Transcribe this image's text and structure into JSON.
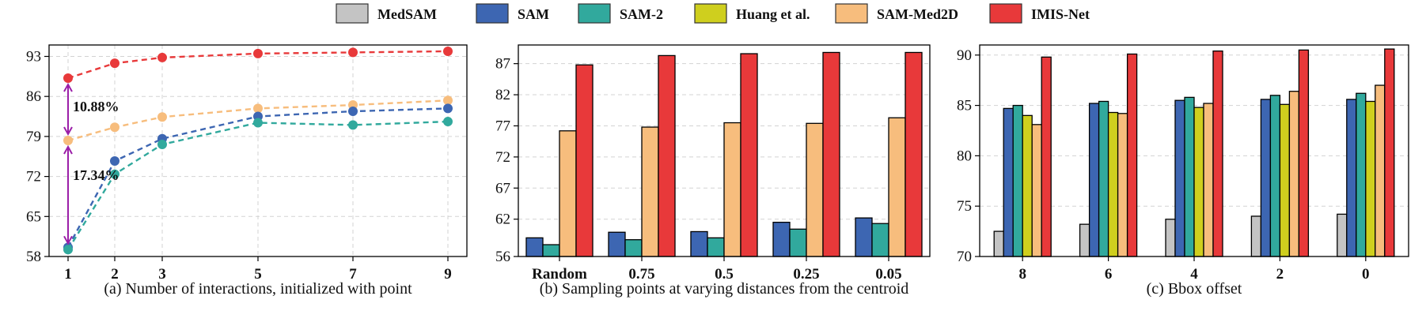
{
  "legend": {
    "items": [
      {
        "name": "MedSAM",
        "color": "#c4c4c4"
      },
      {
        "name": "SAM",
        "color": "#3d66b2"
      },
      {
        "name": "SAM-2",
        "color": "#31a99d"
      },
      {
        "name": "Huang et al.",
        "color": "#cfcf1e"
      },
      {
        "name": "SAM-Med2D",
        "color": "#f7bd7d"
      },
      {
        "name": "IMIS-Net",
        "color": "#e8393a"
      }
    ]
  },
  "chart_data": [
    {
      "type": "line",
      "title": "(a) Number of interactions, initialized with point",
      "x": [
        1,
        2,
        3,
        5,
        7,
        9
      ],
      "ylim": [
        58,
        95
      ],
      "yticks": [
        58,
        65,
        72,
        79,
        86,
        93
      ],
      "grid": true,
      "series": [
        {
          "name": "IMIS-Net",
          "color": "#e8393a",
          "values": [
            89.2,
            91.8,
            92.8,
            93.5,
            93.7,
            93.9
          ]
        },
        {
          "name": "SAM-Med2D",
          "color": "#f7bd7d",
          "values": [
            78.3,
            80.6,
            82.4,
            83.9,
            84.5,
            85.3
          ]
        },
        {
          "name": "SAM",
          "color": "#3d66b2",
          "values": [
            59.6,
            74.7,
            78.6,
            82.5,
            83.4,
            83.9
          ]
        },
        {
          "name": "SAM-2",
          "color": "#31a99d",
          "values": [
            59.2,
            72.4,
            77.6,
            81.4,
            81.0,
            81.6
          ]
        }
      ],
      "annotations": [
        {
          "text": "10.88%",
          "from": 78.3,
          "to": 89.2
        },
        {
          "text": "17.34%",
          "from": 59.2,
          "to": 78.3
        }
      ]
    },
    {
      "type": "bar",
      "title": "(b) Sampling points at varying distances from the centroid",
      "categories": [
        "Random",
        "0.75",
        "0.5",
        "0.25",
        "0.05"
      ],
      "ylim": [
        56,
        90
      ],
      "yticks": [
        56,
        62,
        67,
        72,
        77,
        82,
        87
      ],
      "grid": true,
      "series": [
        {
          "name": "SAM",
          "color": "#3d66b2",
          "values": [
            59.0,
            59.9,
            60.0,
            61.5,
            62.2
          ]
        },
        {
          "name": "SAM-2",
          "color": "#31a99d",
          "values": [
            57.9,
            58.7,
            59.0,
            60.4,
            61.3
          ]
        },
        {
          "name": "SAM-Med2D",
          "color": "#f7bd7d",
          "values": [
            76.2,
            76.8,
            77.5,
            77.4,
            78.3
          ]
        },
        {
          "name": "IMIS-Net",
          "color": "#e8393a",
          "values": [
            86.8,
            88.3,
            88.6,
            88.8,
            88.8
          ]
        }
      ]
    },
    {
      "type": "bar",
      "title": "(c) Bbox offset",
      "categories": [
        "8",
        "6",
        "4",
        "2",
        "0"
      ],
      "ylim": [
        70,
        91
      ],
      "yticks": [
        70,
        75,
        80,
        85,
        90
      ],
      "grid": true,
      "series": [
        {
          "name": "MedSAM",
          "color": "#c4c4c4",
          "values": [
            72.5,
            73.2,
            73.7,
            74.0,
            74.2
          ]
        },
        {
          "name": "SAM",
          "color": "#3d66b2",
          "values": [
            84.7,
            85.2,
            85.5,
            85.6,
            85.6
          ]
        },
        {
          "name": "SAM-2",
          "color": "#31a99d",
          "values": [
            85.0,
            85.4,
            85.8,
            86.0,
            86.2
          ]
        },
        {
          "name": "Huang et al.",
          "color": "#cfcf1e",
          "values": [
            84.0,
            84.3,
            84.8,
            85.1,
            85.4
          ]
        },
        {
          "name": "SAM-Med2D",
          "color": "#f7bd7d",
          "values": [
            83.1,
            84.2,
            85.2,
            86.4,
            87.0
          ]
        },
        {
          "name": "IMIS-Net",
          "color": "#e8393a",
          "values": [
            89.8,
            90.1,
            90.4,
            90.5,
            90.6
          ]
        }
      ]
    }
  ]
}
